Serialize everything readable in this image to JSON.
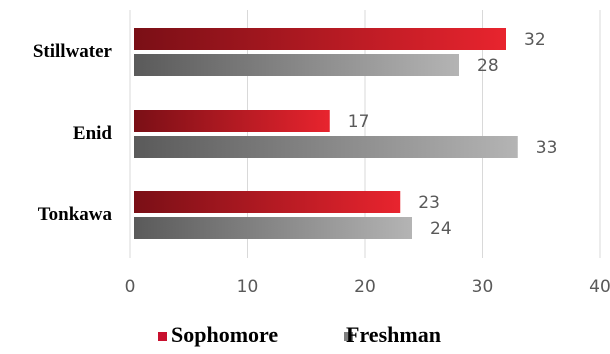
{
  "chart_data": {
    "type": "bar",
    "orientation": "horizontal",
    "categories": [
      "Stillwater",
      "Enid",
      "Tonkawa"
    ],
    "series": [
      {
        "name": "Sophomore",
        "values": [
          32,
          17,
          23
        ],
        "color_dark": "#7a0f16",
        "color_light": "#e8242e"
      },
      {
        "name": "Freshman",
        "values": [
          28,
          33,
          24
        ],
        "color_dark": "#5a5a5a",
        "color_light": "#b4b4b4"
      }
    ],
    "xlim": [
      0,
      40
    ],
    "xticks": [
      "0",
      "10",
      "20",
      "30",
      "40"
    ],
    "grid": true,
    "legend_position": "bottom",
    "title": "",
    "xlabel": "",
    "ylabel": ""
  }
}
